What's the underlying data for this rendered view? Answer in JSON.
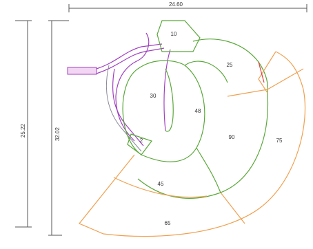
{
  "dimensions": {
    "top": "24.60",
    "left": "25.22",
    "inner_left": "32.02"
  },
  "zones": [
    {
      "label": "10"
    },
    {
      "label": "25"
    },
    {
      "label": "30"
    },
    {
      "label": "48"
    },
    {
      "label": "90"
    },
    {
      "label": "75"
    },
    {
      "label": "45"
    },
    {
      "label": "65"
    },
    {
      "label": "2"
    }
  ]
}
